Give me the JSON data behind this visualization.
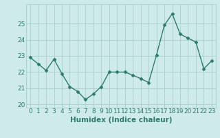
{
  "x": [
    0,
    1,
    2,
    3,
    4,
    5,
    6,
    7,
    8,
    9,
    10,
    11,
    12,
    13,
    14,
    15,
    16,
    17,
    18,
    19,
    20,
    21,
    22,
    23
  ],
  "y": [
    22.9,
    22.5,
    22.1,
    22.8,
    21.9,
    21.1,
    20.8,
    20.3,
    20.65,
    21.1,
    22.0,
    22.0,
    22.0,
    21.8,
    21.6,
    21.35,
    23.05,
    24.9,
    25.6,
    24.35,
    24.1,
    23.85,
    22.2,
    22.7
  ],
  "xlabel": "Humidex (Indice chaleur)",
  "xlim": [
    -0.5,
    23.5
  ],
  "ylim": [
    19.8,
    26.2
  ],
  "yticks": [
    20,
    21,
    22,
    23,
    24,
    25
  ],
  "xticks": [
    0,
    1,
    2,
    3,
    4,
    5,
    6,
    7,
    8,
    9,
    10,
    11,
    12,
    13,
    14,
    15,
    16,
    17,
    18,
    19,
    20,
    21,
    22,
    23
  ],
  "line_color": "#2d7a6e",
  "marker": "D",
  "marker_size": 2.5,
  "bg_color": "#ceeaea",
  "grid_color": "#aacece",
  "xlabel_fontsize": 7.5,
  "tick_fontsize": 6.5,
  "line_width": 1.0
}
